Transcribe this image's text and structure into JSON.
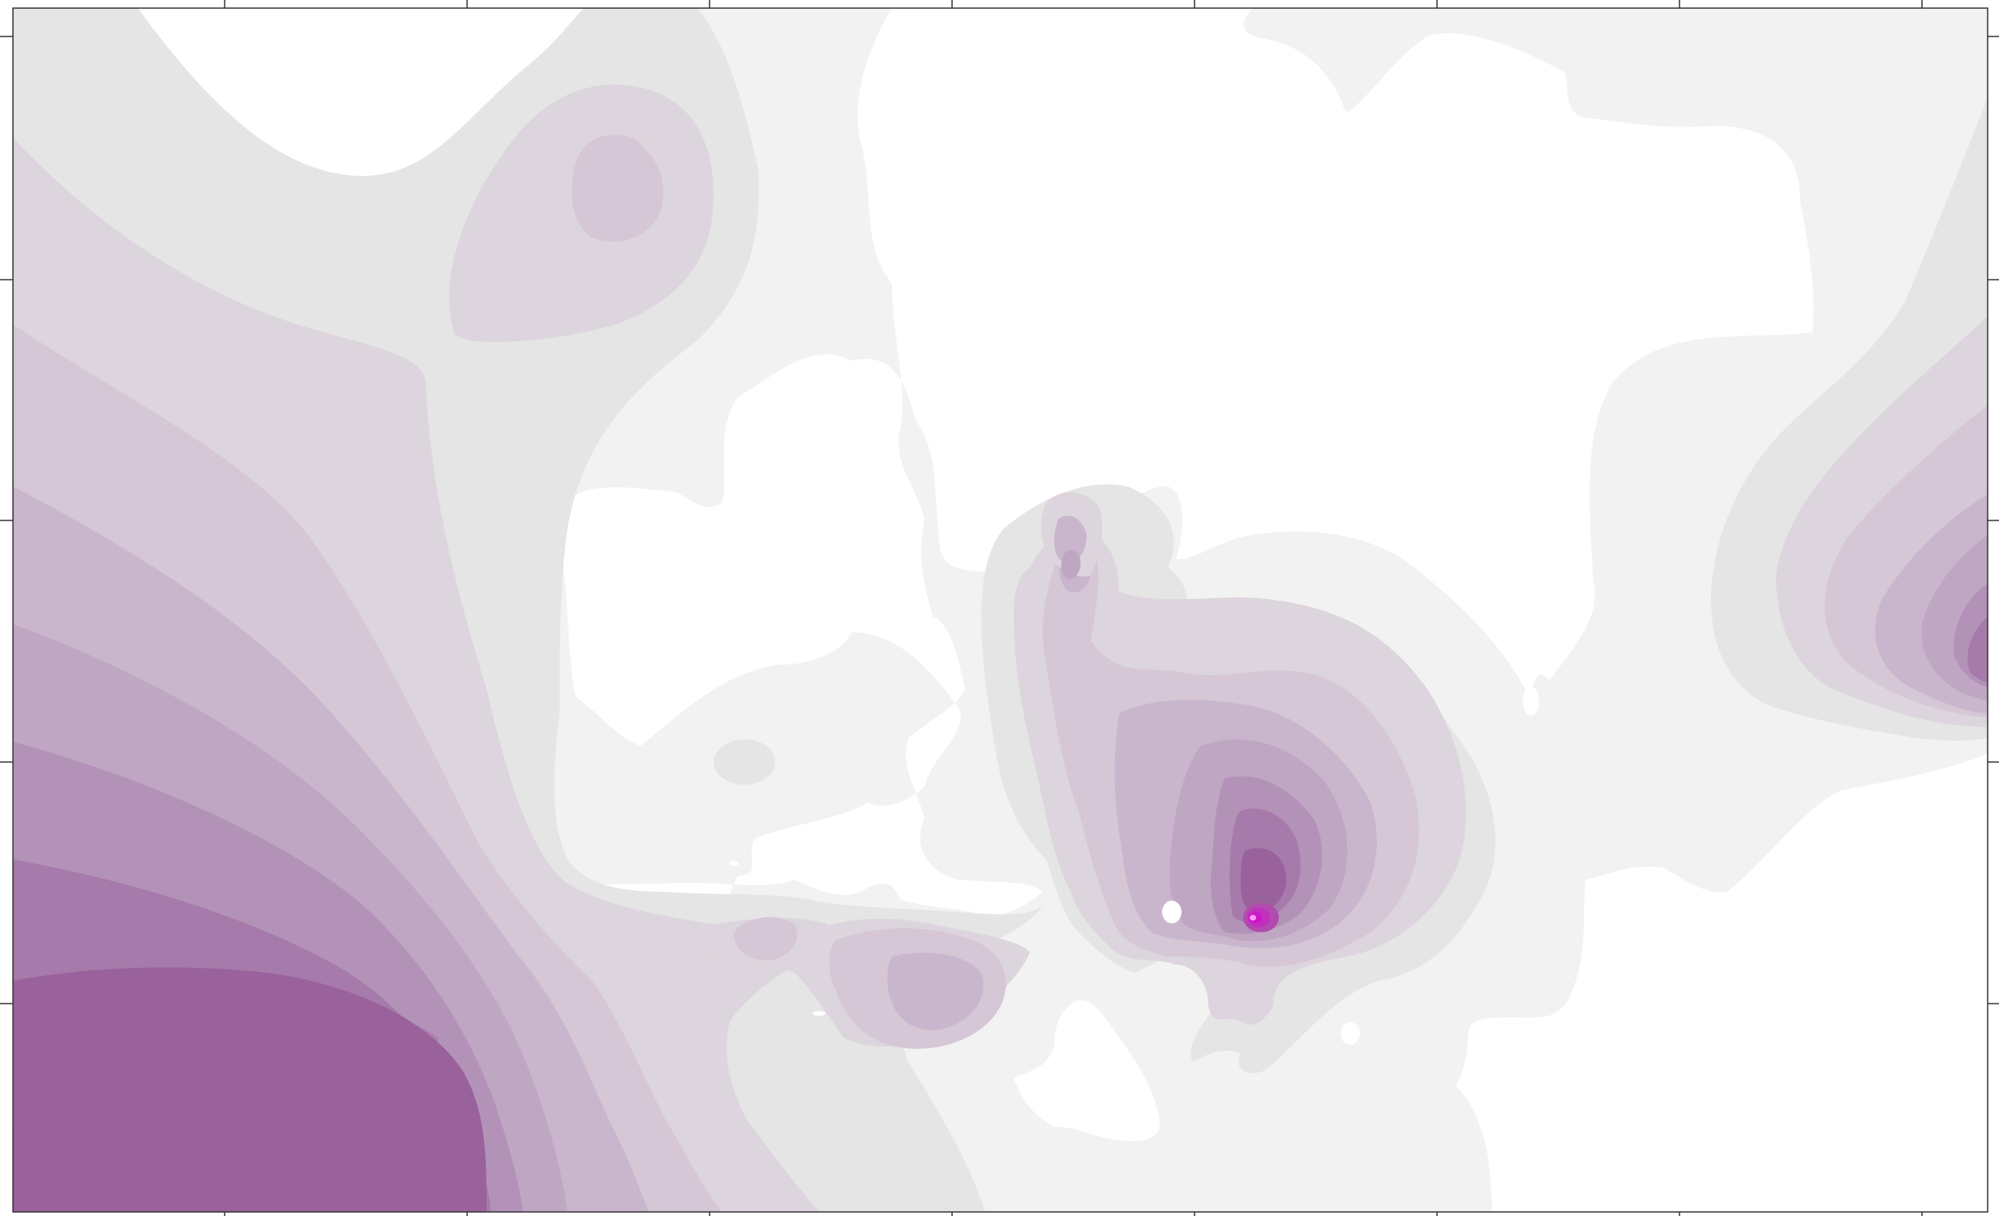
{
  "map": {
    "type": "filled-contour",
    "title": "",
    "colorscale": {
      "levels": [
        "#ffffff",
        "#f2f2f2",
        "#e5e5e5",
        "#ddd5dd",
        "#d5c7d6",
        "#cab6cc",
        "#bfa6c3",
        "#b392b8",
        "#a67aaa",
        "#9a629c",
        "#b24aaf",
        "#c22fbf",
        "#cc17c8"
      ],
      "accent": "#c000c0"
    },
    "grid": false,
    "tick_marks": true,
    "tick_labels": []
  }
}
